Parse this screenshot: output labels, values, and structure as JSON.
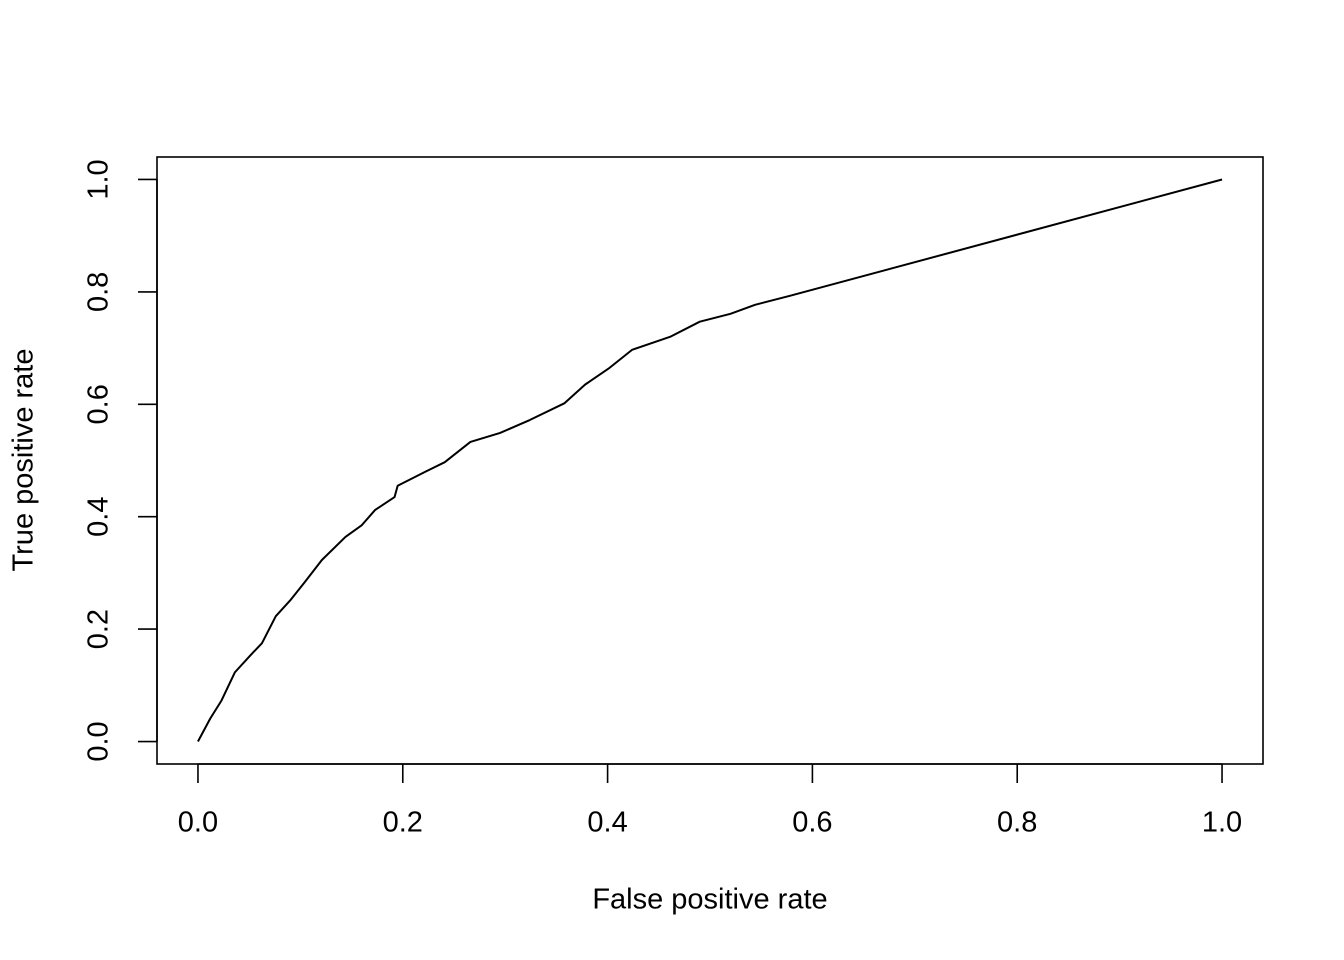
{
  "chart_data": {
    "type": "line",
    "xlabel": "False positive rate",
    "ylabel": "True positive rate",
    "x": [
      0,
      0.012,
      0.023,
      0.036,
      0.051,
      0.0625,
      0.076,
      0.09,
      0.104,
      0.121,
      0.144,
      0.16,
      0.173,
      0.192,
      0.195,
      0.222,
      0.241,
      0.266,
      0.295,
      0.324,
      0.358,
      0.378,
      0.402,
      0.424,
      0.461,
      0.49,
      0.52,
      0.544,
      0.578,
      1
    ],
    "values": [
      0,
      0.041,
      0.073,
      0.123,
      0.153,
      0.175,
      0.223,
      0.251,
      0.283,
      0.323,
      0.364,
      0.385,
      0.412,
      0.435,
      0.455,
      0.48,
      0.497,
      0.533,
      0.549,
      0.572,
      0.602,
      0.635,
      0.665,
      0.697,
      0.72,
      0.747,
      0.761,
      0.777,
      0.793,
      1
    ],
    "color": "#000000",
    "xlim": [
      -0.04,
      1.04
    ],
    "ylim": [
      -0.04,
      1.04
    ],
    "xticks": [
      {
        "value": 0,
        "label": "0.0"
      },
      0.2,
      0.4,
      0.6,
      0.8,
      {
        "value": 1,
        "label": "1.0"
      }
    ],
    "yticks": [
      {
        "value": 0,
        "label": "0.0"
      },
      0.2,
      0.4,
      0.6,
      0.8,
      {
        "value": 1,
        "label": "1.0"
      }
    ]
  }
}
